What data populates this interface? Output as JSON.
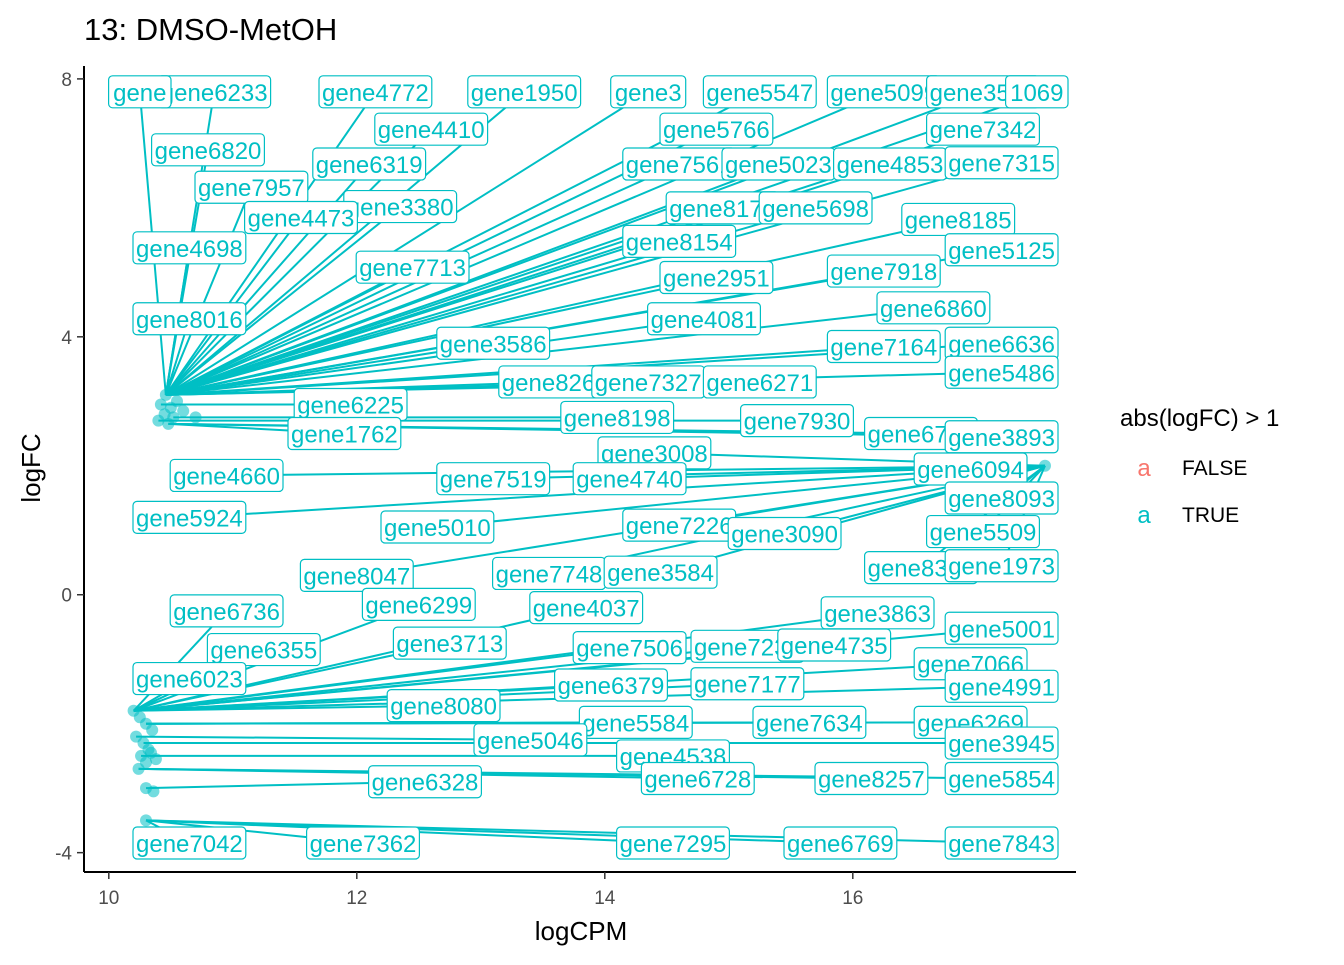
{
  "chart_data": {
    "type": "scatter",
    "title": "13: DMSO-MetOH",
    "xlabel": "logCPM",
    "ylabel": "logFC",
    "xlim": [
      9.8,
      17.8
    ],
    "ylim": [
      -4.3,
      8.2
    ],
    "xticks": [
      10,
      12,
      14,
      16
    ],
    "yticks": [
      -4,
      0,
      4,
      8
    ],
    "xtick_labels": [
      "10",
      "12",
      "14",
      "16"
    ],
    "ytick_labels": [
      "-4",
      "0",
      "4",
      "8"
    ],
    "grid": false,
    "legend": {
      "title": "abs(logFC) > 1",
      "position": "right",
      "entries": [
        {
          "key": "a",
          "label": "FALSE",
          "color": "#F8766D"
        },
        {
          "key": "a",
          "label": "TRUE",
          "color": "#00BFC4"
        }
      ]
    },
    "colors": {
      "TRUE": "#00BFC4",
      "FALSE": "#F8766D"
    },
    "series": [
      {
        "name": "TRUE",
        "points": [
          {
            "x": 10.45,
            "y": 2.8
          },
          {
            "x": 10.5,
            "y": 2.9
          },
          {
            "x": 10.55,
            "y": 3.0
          },
          {
            "x": 10.4,
            "y": 2.7
          },
          {
            "x": 10.48,
            "y": 2.65
          },
          {
            "x": 10.6,
            "y": 2.85
          },
          {
            "x": 10.42,
            "y": 2.95
          },
          {
            "x": 10.52,
            "y": 2.75
          },
          {
            "x": 10.7,
            "y": 2.75
          },
          {
            "x": 10.46,
            "y": 3.1
          },
          {
            "x": 10.2,
            "y": -1.8
          },
          {
            "x": 10.25,
            "y": -1.9
          },
          {
            "x": 10.3,
            "y": -2.0
          },
          {
            "x": 10.35,
            "y": -2.1
          },
          {
            "x": 10.22,
            "y": -2.2
          },
          {
            "x": 10.28,
            "y": -2.3
          },
          {
            "x": 10.32,
            "y": -2.4
          },
          {
            "x": 10.26,
            "y": -2.5
          },
          {
            "x": 10.3,
            "y": -2.6
          },
          {
            "x": 10.24,
            "y": -2.7
          },
          {
            "x": 10.38,
            "y": -2.55
          },
          {
            "x": 10.34,
            "y": -2.45
          },
          {
            "x": 10.3,
            "y": -3.0
          },
          {
            "x": 10.36,
            "y": -3.05
          },
          {
            "x": 10.3,
            "y": -3.5
          },
          {
            "x": 17.55,
            "y": 2.0
          }
        ]
      }
    ],
    "gene_labels": [
      {
        "text": "gene6233",
        "x": 10.85,
        "y": 7.8
      },
      {
        "text": "gene4772",
        "x": 12.15,
        "y": 7.8
      },
      {
        "text": "gene1950",
        "x": 13.35,
        "y": 7.8
      },
      {
        "text": "gene3",
        "x": 14.35,
        "y": 7.8
      },
      {
        "text": "gene5547",
        "x": 15.25,
        "y": 7.8
      },
      {
        "text": "gene5099",
        "x": 16.25,
        "y": 7.8
      },
      {
        "text": "gene3554",
        "x": 17.05,
        "y": 7.8
      },
      {
        "text": "1069",
        "x": 17.55,
        "y": 7.8
      },
      {
        "text": "gene",
        "x": 10.25,
        "y": 7.8
      },
      {
        "text": "gene4410",
        "x": 12.6,
        "y": 7.22
      },
      {
        "text": "gene5766",
        "x": 14.9,
        "y": 7.22
      },
      {
        "text": "gene7342",
        "x": 17.05,
        "y": 7.22
      },
      {
        "text": "gene6820",
        "x": 10.8,
        "y": 6.9
      },
      {
        "text": "gene6319",
        "x": 12.1,
        "y": 6.68
      },
      {
        "text": "gene7561",
        "x": 14.6,
        "y": 6.68
      },
      {
        "text": "gene5023",
        "x": 15.4,
        "y": 6.68
      },
      {
        "text": "gene4853",
        "x": 16.3,
        "y": 6.68
      },
      {
        "text": "gene7315",
        "x": 17.2,
        "y": 6.7
      },
      {
        "text": "gene7957",
        "x": 11.15,
        "y": 6.32
      },
      {
        "text": "gene3380",
        "x": 12.35,
        "y": 6.02
      },
      {
        "text": "gene8176",
        "x": 14.95,
        "y": 6.0
      },
      {
        "text": "gene5698",
        "x": 15.7,
        "y": 6.0
      },
      {
        "text": "gene8185",
        "x": 16.85,
        "y": 5.82
      },
      {
        "text": "gene4473",
        "x": 11.55,
        "y": 5.85
      },
      {
        "text": "gene8154",
        "x": 14.6,
        "y": 5.48
      },
      {
        "text": "gene4698",
        "x": 10.65,
        "y": 5.38
      },
      {
        "text": "gene5125",
        "x": 17.2,
        "y": 5.35
      },
      {
        "text": "gene7713",
        "x": 12.45,
        "y": 5.08
      },
      {
        "text": "gene2951",
        "x": 14.9,
        "y": 4.92
      },
      {
        "text": "gene7918",
        "x": 16.25,
        "y": 5.02
      },
      {
        "text": "gene8016",
        "x": 10.65,
        "y": 4.28
      },
      {
        "text": "gene4081",
        "x": 14.8,
        "y": 4.28
      },
      {
        "text": "gene6860",
        "x": 16.65,
        "y": 4.45
      },
      {
        "text": "gene7164",
        "x": 16.25,
        "y": 3.85
      },
      {
        "text": "gene6636",
        "x": 17.2,
        "y": 3.9
      },
      {
        "text": "gene3586",
        "x": 13.1,
        "y": 3.9
      },
      {
        "text": "gene8265",
        "x": 13.6,
        "y": 3.3
      },
      {
        "text": "gene7327",
        "x": 14.35,
        "y": 3.3
      },
      {
        "text": "gene6271",
        "x": 15.25,
        "y": 3.3
      },
      {
        "text": "gene5486",
        "x": 17.2,
        "y": 3.45
      },
      {
        "text": "gene6225",
        "x": 11.95,
        "y": 2.95
      },
      {
        "text": "gene8198",
        "x": 14.1,
        "y": 2.75
      },
      {
        "text": "gene7930",
        "x": 15.55,
        "y": 2.7
      },
      {
        "text": "gene6726",
        "x": 16.55,
        "y": 2.5
      },
      {
        "text": "gene3893",
        "x": 17.2,
        "y": 2.45
      },
      {
        "text": "gene1762",
        "x": 11.9,
        "y": 2.5
      },
      {
        "text": "gene3008",
        "x": 14.4,
        "y": 2.2
      },
      {
        "text": "gene4660",
        "x": 10.95,
        "y": 1.85
      },
      {
        "text": "gene7519",
        "x": 13.1,
        "y": 1.8
      },
      {
        "text": "gene4740",
        "x": 14.2,
        "y": 1.8
      },
      {
        "text": "gene6094",
        "x": 16.95,
        "y": 1.95
      },
      {
        "text": "gene8093",
        "x": 17.2,
        "y": 1.5
      },
      {
        "text": "gene7226",
        "x": 14.6,
        "y": 1.08
      },
      {
        "text": "gene3090",
        "x": 15.45,
        "y": 0.95
      },
      {
        "text": "gene5509",
        "x": 17.05,
        "y": 0.98
      },
      {
        "text": "gene5924",
        "x": 10.65,
        "y": 1.2
      },
      {
        "text": "gene5010",
        "x": 12.65,
        "y": 1.05
      },
      {
        "text": "gene8047",
        "x": 12.0,
        "y": 0.3
      },
      {
        "text": "gene7748",
        "x": 13.55,
        "y": 0.33
      },
      {
        "text": "gene3584",
        "x": 14.45,
        "y": 0.35
      },
      {
        "text": "gene8330",
        "x": 16.55,
        "y": 0.42
      },
      {
        "text": "gene1973",
        "x": 17.2,
        "y": 0.45
      },
      {
        "text": "gene6736",
        "x": 10.95,
        "y": -0.25
      },
      {
        "text": "gene6299",
        "x": 12.5,
        "y": -0.15
      },
      {
        "text": "gene4037",
        "x": 13.85,
        "y": -0.2
      },
      {
        "text": "gene3863",
        "x": 16.2,
        "y": -0.28
      },
      {
        "text": "gene5001",
        "x": 17.2,
        "y": -0.52
      },
      {
        "text": "gene6355",
        "x": 11.25,
        "y": -0.85
      },
      {
        "text": "gene3713",
        "x": 12.75,
        "y": -0.75
      },
      {
        "text": "gene7506",
        "x": 14.2,
        "y": -0.82
      },
      {
        "text": "gene7231",
        "x": 15.15,
        "y": -0.8
      },
      {
        "text": "gene4735",
        "x": 15.85,
        "y": -0.78
      },
      {
        "text": "gene7066",
        "x": 16.95,
        "y": -1.07
      },
      {
        "text": "gene6023",
        "x": 10.65,
        "y": -1.3
      },
      {
        "text": "gene6379",
        "x": 14.05,
        "y": -1.4
      },
      {
        "text": "gene7177",
        "x": 15.15,
        "y": -1.38
      },
      {
        "text": "gene4991",
        "x": 17.2,
        "y": -1.42
      },
      {
        "text": "gene8080",
        "x": 12.7,
        "y": -1.72
      },
      {
        "text": "gene5584",
        "x": 14.25,
        "y": -1.98
      },
      {
        "text": "gene7634",
        "x": 15.65,
        "y": -1.98
      },
      {
        "text": "gene6269",
        "x": 16.95,
        "y": -1.98
      },
      {
        "text": "gene5046",
        "x": 13.4,
        "y": -2.25
      },
      {
        "text": "gene3945",
        "x": 17.2,
        "y": -2.3
      },
      {
        "text": "gene4538",
        "x": 14.55,
        "y": -2.5
      },
      {
        "text": "gene6328",
        "x": 12.55,
        "y": -2.9
      },
      {
        "text": "gene6728",
        "x": 14.75,
        "y": -2.85
      },
      {
        "text": "gene8257",
        "x": 16.15,
        "y": -2.85
      },
      {
        "text": "gene5854",
        "x": 17.2,
        "y": -2.85
      },
      {
        "text": "gene7042",
        "x": 10.65,
        "y": -3.85
      },
      {
        "text": "gene7362",
        "x": 12.05,
        "y": -3.85
      },
      {
        "text": "gene7295",
        "x": 14.55,
        "y": -3.85
      },
      {
        "text": "gene6769",
        "x": 15.9,
        "y": -3.85
      },
      {
        "text": "gene7843",
        "x": 17.2,
        "y": -3.85
      }
    ]
  }
}
